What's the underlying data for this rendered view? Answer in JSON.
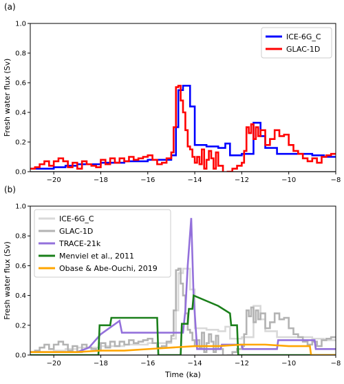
{
  "chart_data": [
    {
      "type": "line",
      "panel_label": "(a)",
      "title": "",
      "xlabel": "",
      "ylabel": "Fresh water flux (Sv)",
      "xlim": [
        -21,
        -8
      ],
      "ylim": [
        0,
        1.0
      ],
      "xticks": [
        -20,
        -18,
        -16,
        -14,
        -12,
        -10,
        -8
      ],
      "yticks": [
        0.0,
        0.2,
        0.4,
        0.6,
        0.8,
        1.0
      ],
      "xtick_labels": [
        "−20",
        "−18",
        "−16",
        "−14",
        "−12",
        "−10",
        "−8"
      ],
      "ytick_labels": [
        "0.0",
        "0.2",
        "0.4",
        "0.6",
        "0.8",
        "1.0"
      ],
      "grid": false,
      "legend_position": "top-right",
      "baseline": 0,
      "series": [
        {
          "name": "ICE-6G_C",
          "color": "#0000ff",
          "step": true,
          "x": [
            -21,
            -20.5,
            -20,
            -19.5,
            -19,
            -18.5,
            -18,
            -17.5,
            -17,
            -16.5,
            -16,
            -15.5,
            -15,
            -14.8,
            -14.7,
            -14.5,
            -14.2,
            -14,
            -13.5,
            -13,
            -12.7,
            -12.5,
            -12,
            -11.8,
            -11.5,
            -11.2,
            -11,
            -10.5,
            -10,
            -9.5,
            -9,
            -8.5,
            -8
          ],
          "y": [
            0.02,
            0.02,
            0.03,
            0.04,
            0.05,
            0.05,
            0.06,
            0.06,
            0.07,
            0.07,
            0.08,
            0.08,
            0.11,
            0.3,
            0.55,
            0.58,
            0.44,
            0.18,
            0.17,
            0.16,
            0.19,
            0.11,
            0.12,
            0.12,
            0.33,
            0.24,
            0.16,
            0.12,
            0.12,
            0.12,
            0.11,
            0.1,
            0.1
          ]
        },
        {
          "name": "GLAC-1D",
          "color": "#ff0000",
          "step": true,
          "x": [
            -21,
            -20.8,
            -20.6,
            -20.4,
            -20.2,
            -20,
            -19.8,
            -19.6,
            -19.4,
            -19.2,
            -19,
            -18.8,
            -18.6,
            -18.4,
            -18.2,
            -18,
            -17.8,
            -17.6,
            -17.4,
            -17.2,
            -17,
            -16.8,
            -16.6,
            -16.4,
            -16.2,
            -16,
            -15.8,
            -15.6,
            -15.4,
            -15.2,
            -15,
            -14.9,
            -14.8,
            -14.7,
            -14.6,
            -14.5,
            -14.4,
            -14.3,
            -14.2,
            -14.1,
            -14,
            -13.9,
            -13.8,
            -13.7,
            -13.6,
            -13.5,
            -13.4,
            -13.3,
            -13.2,
            -13.1,
            -13,
            -12.8,
            -12.6,
            -12.4,
            -12.2,
            -12,
            -11.9,
            -11.8,
            -11.7,
            -11.6,
            -11.5,
            -11.4,
            -11.3,
            -11.2,
            -11,
            -10.8,
            -10.6,
            -10.4,
            -10.2,
            -10,
            -9.8,
            -9.6,
            -9.4,
            -9.2,
            -9,
            -8.8,
            -8.6,
            -8.4,
            -8.2,
            -8
          ],
          "y": [
            0.02,
            0.03,
            0.05,
            0.07,
            0.04,
            0.07,
            0.09,
            0.07,
            0.03,
            0.06,
            0.02,
            0.07,
            0.05,
            0.04,
            0.03,
            0.08,
            0.05,
            0.09,
            0.06,
            0.09,
            0.07,
            0.1,
            0.08,
            0.09,
            0.1,
            0.11,
            0.08,
            0.05,
            0.06,
            0.09,
            0.13,
            0.3,
            0.57,
            0.58,
            0.48,
            0.4,
            0.28,
            0.17,
            0.15,
            0.1,
            0.06,
            0.1,
            0.05,
            0.15,
            0.02,
            0.08,
            0.14,
            0.09,
            0.02,
            0.13,
            0.04,
            -0.01,
            0.0,
            0.02,
            0.04,
            0.06,
            0.14,
            0.3,
            0.26,
            0.32,
            0.22,
            0.3,
            0.24,
            0.28,
            0.18,
            0.22,
            0.28,
            0.24,
            0.25,
            0.18,
            0.14,
            0.12,
            0.09,
            0.07,
            0.09,
            0.06,
            0.1,
            0.11,
            0.12,
            0.12
          ]
        }
      ]
    },
    {
      "type": "line",
      "panel_label": "(b)",
      "title": "",
      "xlabel": "Time (ka)",
      "ylabel": "Fresh water flux (Sv)",
      "xlim": [
        -21,
        -8
      ],
      "ylim": [
        0,
        1.0
      ],
      "xticks": [
        -20,
        -18,
        -16,
        -14,
        -12,
        -10,
        -8
      ],
      "yticks": [
        0.0,
        0.2,
        0.4,
        0.6,
        0.8,
        1.0
      ],
      "xtick_labels": [
        "−20",
        "−18",
        "−16",
        "−14",
        "−12",
        "−10",
        "−8"
      ],
      "ytick_labels": [
        "0.0",
        "0.2",
        "0.4",
        "0.6",
        "0.8",
        "1.0"
      ],
      "grid": false,
      "legend_position": "top-left",
      "baseline": 0,
      "series": [
        {
          "name": "ICE-6G_C",
          "color": "#d9d9d9",
          "step": true,
          "x": [
            -21,
            -20.5,
            -20,
            -19.5,
            -19,
            -18.5,
            -18,
            -17.5,
            -17,
            -16.5,
            -16,
            -15.5,
            -15,
            -14.8,
            -14.7,
            -14.5,
            -14.2,
            -14,
            -13.5,
            -13,
            -12.7,
            -12.5,
            -12,
            -11.8,
            -11.5,
            -11.2,
            -11,
            -10.5,
            -10,
            -9.5,
            -9,
            -8.5,
            -8
          ],
          "y": [
            0.02,
            0.02,
            0.03,
            0.04,
            0.05,
            0.05,
            0.06,
            0.06,
            0.07,
            0.07,
            0.08,
            0.08,
            0.11,
            0.3,
            0.55,
            0.58,
            0.44,
            0.18,
            0.17,
            0.16,
            0.19,
            0.11,
            0.12,
            0.12,
            0.33,
            0.24,
            0.16,
            0.12,
            0.12,
            0.12,
            0.11,
            0.1,
            0.1
          ]
        },
        {
          "name": "GLAC-1D",
          "color": "#b3b3b3",
          "step": true,
          "x": [
            -21,
            -20.8,
            -20.6,
            -20.4,
            -20.2,
            -20,
            -19.8,
            -19.6,
            -19.4,
            -19.2,
            -19,
            -18.8,
            -18.6,
            -18.4,
            -18.2,
            -18,
            -17.8,
            -17.6,
            -17.4,
            -17.2,
            -17,
            -16.8,
            -16.6,
            -16.4,
            -16.2,
            -16,
            -15.8,
            -15.6,
            -15.4,
            -15.2,
            -15,
            -14.9,
            -14.8,
            -14.7,
            -14.6,
            -14.5,
            -14.4,
            -14.3,
            -14.2,
            -14.1,
            -14,
            -13.9,
            -13.8,
            -13.7,
            -13.6,
            -13.5,
            -13.4,
            -13.3,
            -13.2,
            -13.1,
            -13,
            -12.8,
            -12.6,
            -12.4,
            -12.2,
            -12,
            -11.9,
            -11.8,
            -11.7,
            -11.6,
            -11.5,
            -11.4,
            -11.3,
            -11.2,
            -11,
            -10.8,
            -10.6,
            -10.4,
            -10.2,
            -10,
            -9.8,
            -9.6,
            -9.4,
            -9.2,
            -9,
            -8.8,
            -8.6,
            -8.4,
            -8.2,
            -8
          ],
          "y": [
            0.02,
            0.03,
            0.05,
            0.07,
            0.04,
            0.07,
            0.09,
            0.07,
            0.03,
            0.06,
            0.02,
            0.07,
            0.05,
            0.04,
            0.03,
            0.08,
            0.05,
            0.09,
            0.06,
            0.09,
            0.07,
            0.1,
            0.08,
            0.09,
            0.1,
            0.11,
            0.08,
            0.05,
            0.06,
            0.09,
            0.13,
            0.3,
            0.57,
            0.58,
            0.48,
            0.4,
            0.28,
            0.17,
            0.15,
            0.1,
            0.06,
            0.1,
            0.05,
            0.15,
            0.02,
            0.08,
            0.14,
            0.09,
            0.02,
            0.13,
            0.04,
            -0.01,
            0.0,
            0.02,
            0.04,
            0.06,
            0.14,
            0.3,
            0.26,
            0.32,
            0.22,
            0.3,
            0.24,
            0.28,
            0.18,
            0.22,
            0.28,
            0.24,
            0.25,
            0.18,
            0.14,
            0.12,
            0.09,
            0.07,
            0.09,
            0.06,
            0.1,
            0.11,
            0.12,
            0.12
          ]
        },
        {
          "name": "TRACE-21k",
          "color": "#9370db",
          "step": false,
          "x": [
            -21,
            -19,
            -18.5,
            -18,
            -17.2,
            -17.1,
            -15.6,
            -14.5,
            -14.4,
            -14.3,
            -14.15,
            -14.05,
            -13.9,
            -12.9,
            -12.85,
            -12,
            -11.95,
            -10.5,
            -10.45,
            -9.6,
            -8.9,
            -8.85,
            -8
          ],
          "y": [
            0.02,
            0.02,
            0.05,
            0.14,
            0.23,
            0.15,
            0.15,
            0.15,
            0.3,
            0.6,
            0.92,
            0.4,
            0.04,
            0.04,
            0.07,
            0.07,
            0.04,
            0.04,
            0.1,
            0.1,
            0.1,
            0.04,
            0.04
          ]
        },
        {
          "name": "Menviel et al., 2011",
          "color": "#1a7f1a",
          "step": false,
          "x": [
            -21,
            -18.1,
            -18.05,
            -17.6,
            -17.55,
            -15.6,
            -15.55,
            -14.6,
            -14.55,
            -14.3,
            -14.25,
            -14.1,
            -14.05,
            -13,
            -12.5,
            -12.45,
            -12.2,
            -12.15,
            -8
          ],
          "y": [
            0,
            0,
            0.2,
            0.2,
            0.25,
            0.25,
            0,
            0,
            0.21,
            0.21,
            0.31,
            0.31,
            0.4,
            0.33,
            0.28,
            0.2,
            0.2,
            0,
            0
          ]
        },
        {
          "name": "Obase & Abe-Ouchi, 2019",
          "color": "#ffa500",
          "step": false,
          "x": [
            -21,
            -19,
            -18,
            -17,
            -16,
            -15,
            -14,
            -13,
            -12,
            -11,
            -10,
            -9.1,
            -9.05,
            -8
          ],
          "y": [
            0.02,
            0.02,
            0.03,
            0.03,
            0.04,
            0.05,
            0.06,
            0.06,
            0.07,
            0.07,
            0.06,
            0.06,
            0,
            0
          ]
        }
      ]
    }
  ]
}
